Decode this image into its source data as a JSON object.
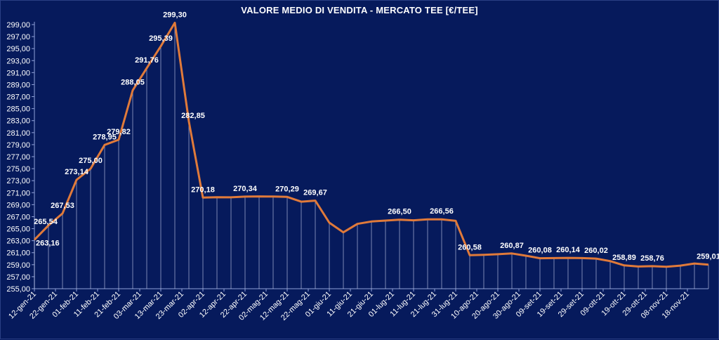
{
  "chart_data": {
    "type": "line",
    "title": "VALORE MEDIO DI VENDITA -  MERCATO TEE [€/TEE]",
    "xlabel": "",
    "ylabel": "",
    "ylim": [
      255,
      299
    ],
    "yticks": [
      "255,00",
      "257,00",
      "259,00",
      "261,00",
      "263,00",
      "265,00",
      "267,00",
      "269,00",
      "271,00",
      "273,00",
      "275,00",
      "277,00",
      "279,00",
      "281,00",
      "283,00",
      "285,00",
      "287,00",
      "289,00",
      "291,00",
      "293,00",
      "295,00",
      "297,00",
      "299,00"
    ],
    "categories": [
      "12-gen-21",
      "22-gen-21",
      "01-feb-21",
      "11-feb-21",
      "21-feb-21",
      "03-mar-21",
      "13-mar-21",
      "23-mar-21",
      "02-apr-21",
      "12-apr-21",
      "22-apr-21",
      "02-mag-21",
      "12-mag-21",
      "22-mag-21",
      "01-giu-21",
      "11-giu-21",
      "21-giu-21",
      "01-lug-21",
      "11-lug-21",
      "21-lug-21",
      "31-lug-21",
      "10-ago-21",
      "20-ago-21",
      "30-ago-21",
      "09-set-21",
      "19-set-21",
      "29-set-21",
      "09-ott-21",
      "19-ott-21",
      "29-ott-21",
      "08-nov-21",
      "18-nov-21"
    ],
    "series": [
      {
        "points": [
          {
            "x": 0,
            "y": 263.16,
            "label": "263,16"
          },
          {
            "x": 1,
            "y": 265.54,
            "label": "265,54"
          },
          {
            "x": 2,
            "y": 267.53,
            "label": "267,53"
          },
          {
            "x": 3,
            "y": 273.14,
            "label": "273,14"
          },
          {
            "x": 4,
            "y": 275.0,
            "label": "275,00"
          },
          {
            "x": 5,
            "y": 278.95,
            "label": "278,95"
          },
          {
            "x": 6,
            "y": 279.82,
            "label": "279,82"
          },
          {
            "x": 7,
            "y": 288.05,
            "label": "288,05"
          },
          {
            "x": 8,
            "y": 291.76,
            "label": "291,76"
          },
          {
            "x": 9,
            "y": 295.39,
            "label": "295,39"
          },
          {
            "x": 10,
            "y": 299.3,
            "label": "299,30"
          },
          {
            "x": 11,
            "y": 282.85,
            "label": "282,85"
          },
          {
            "x": 12,
            "y": 270.18,
            "label": "270,18"
          },
          {
            "x": 13,
            "y": 270.25,
            "label": ""
          },
          {
            "x": 14,
            "y": 270.22,
            "label": ""
          },
          {
            "x": 15,
            "y": 270.34,
            "label": "270,34"
          },
          {
            "x": 16,
            "y": 270.38,
            "label": ""
          },
          {
            "x": 17,
            "y": 270.35,
            "label": ""
          },
          {
            "x": 18,
            "y": 270.29,
            "label": "270,29"
          },
          {
            "x": 19,
            "y": 269.5,
            "label": ""
          },
          {
            "x": 20,
            "y": 269.67,
            "label": "269,67"
          },
          {
            "x": 21,
            "y": 266.0,
            "label": ""
          },
          {
            "x": 22,
            "y": 264.4,
            "label": ""
          },
          {
            "x": 23,
            "y": 265.8,
            "label": ""
          },
          {
            "x": 24,
            "y": 266.2,
            "label": ""
          },
          {
            "x": 25,
            "y": 266.35,
            "label": ""
          },
          {
            "x": 26,
            "y": 266.5,
            "label": "266,50"
          },
          {
            "x": 27,
            "y": 266.4,
            "label": ""
          },
          {
            "x": 28,
            "y": 266.55,
            "label": ""
          },
          {
            "x": 29,
            "y": 266.56,
            "label": "266,56"
          },
          {
            "x": 30,
            "y": 266.3,
            "label": ""
          },
          {
            "x": 31,
            "y": 260.58,
            "label": "260,58"
          },
          {
            "x": 32,
            "y": 260.65,
            "label": ""
          },
          {
            "x": 33,
            "y": 260.75,
            "label": ""
          },
          {
            "x": 34,
            "y": 260.87,
            "label": "260,87"
          },
          {
            "x": 35,
            "y": 260.5,
            "label": ""
          },
          {
            "x": 36,
            "y": 260.08,
            "label": "260,08"
          },
          {
            "x": 37,
            "y": 260.1,
            "label": ""
          },
          {
            "x": 38,
            "y": 260.14,
            "label": "260,14"
          },
          {
            "x": 39,
            "y": 260.1,
            "label": ""
          },
          {
            "x": 40,
            "y": 260.02,
            "label": "260,02"
          },
          {
            "x": 41,
            "y": 259.6,
            "label": ""
          },
          {
            "x": 42,
            "y": 258.89,
            "label": "258,89"
          },
          {
            "x": 43,
            "y": 258.7,
            "label": ""
          },
          {
            "x": 44,
            "y": 258.76,
            "label": "258,76"
          },
          {
            "x": 45,
            "y": 258.65,
            "label": ""
          },
          {
            "x": 46,
            "y": 258.85,
            "label": ""
          },
          {
            "x": 47,
            "y": 259.2,
            "label": ""
          },
          {
            "x": 48,
            "y": 259.01,
            "label": "259,01"
          }
        ]
      }
    ],
    "grid": false,
    "colors": {
      "background": "#061a5c",
      "line": "#e07a3a",
      "drop_line": "#c9d2ee",
      "text": "#ffffff"
    }
  }
}
